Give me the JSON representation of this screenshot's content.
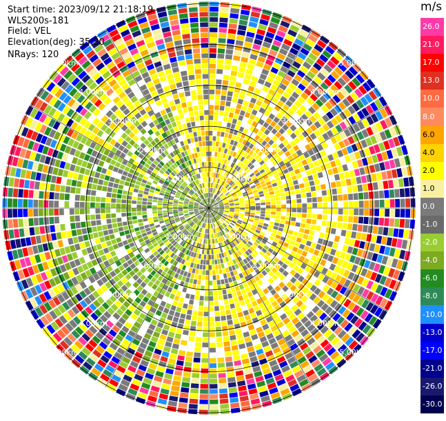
{
  "header": {
    "start_time": "Start time: 2023/09/12 21:18:19",
    "instrument": "WLS200s-181",
    "field": "Field: VEL",
    "elevation": "Elevation(deg): 35.30",
    "nrays": "NRays: 120"
  },
  "colorbar": {
    "unit": "m/s",
    "ticks": [
      "26.0",
      "21.0",
      "17.0",
      "13.0",
      "10.0",
      "8.0",
      "6.0",
      "4.0",
      "2.0",
      "1.0",
      "0.0",
      "-1.0",
      "-2.0",
      "-4.0",
      "-6.0",
      "-8.0",
      "-10.0",
      "-13.0",
      "-17.0",
      "-21.0",
      "-26.0",
      "-30.0"
    ],
    "colors": [
      "#ff3aa8",
      "#ff1a60",
      "#ff0000",
      "#e03020",
      "#ff6a40",
      "#ff8a60",
      "#ffa500",
      "#ffd200",
      "#ffff00",
      "#f8f0a0",
      "#7a7a7a",
      "#6a6a6a",
      "#9acd32",
      "#7caa20",
      "#228b22",
      "#2e8b57",
      "#1e90ff",
      "#0000cd",
      "#0000ff",
      "#00008b",
      "#191970",
      "#000050"
    ]
  },
  "chart_data": {
    "type": "ppi",
    "title": "",
    "range_ring_labels": [
      "1.00km",
      "2.00km",
      "3.00km",
      "4.00km",
      "5.00km"
    ],
    "range_rings_km": [
      1,
      2,
      3,
      4,
      5
    ],
    "max_range_km": 5.05,
    "n_rays": 120,
    "velocity_unit": "m/s",
    "vmin": -30,
    "vmax": 30,
    "pattern": {
      "near_field": "mixed yellow (approx +2 m/s) toward north/east, green (approx -2 m/s) toward west/southwest",
      "far_field": "noise with full color range beyond approx 4 km"
    }
  }
}
